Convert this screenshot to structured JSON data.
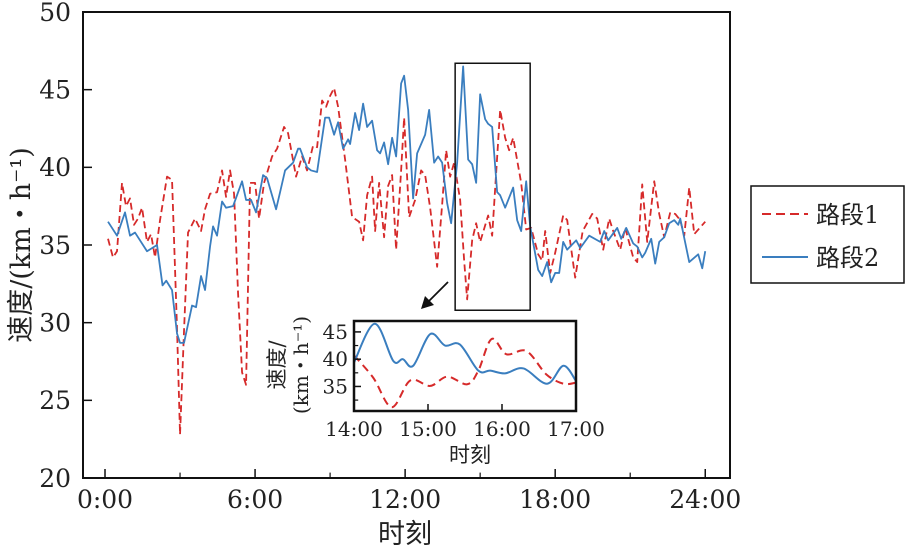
{
  "chart_data": [
    {
      "type": "line",
      "title": "",
      "xlabel": "时刻",
      "ylabel": "速度/(km・h⁻¹)",
      "xlim": [
        0,
        24
      ],
      "ylim": [
        20,
        50
      ],
      "xticks": [
        0,
        6,
        12,
        18,
        24
      ],
      "xtick_labels": [
        "0:00",
        "6:00",
        "12:00",
        "18:00",
        "24:00"
      ],
      "yticks": [
        20,
        25,
        30,
        35,
        40,
        45,
        50
      ],
      "ytick_labels": [
        "20",
        "25",
        "30",
        "35",
        "40",
        "45",
        "50"
      ],
      "legend": {
        "placement": "right-outside",
        "entries": [
          "路段1",
          "路段2"
        ]
      },
      "highlight_window": {
        "x": [
          14,
          17
        ],
        "y": [
          30.8,
          46.7
        ]
      },
      "series": [
        {
          "name": "路段1",
          "color": "#d62a2a",
          "style": "dashed",
          "x": [
            0.12,
            0.32,
            0.48,
            0.68,
            0.84,
            1.0,
            1.16,
            1.32,
            1.48,
            1.68,
            1.84,
            2.0,
            2.2,
            2.48,
            2.68,
            2.88,
            3.0,
            3.16,
            3.32,
            3.6,
            3.84,
            4.0,
            4.2,
            4.48,
            4.68,
            4.84,
            5.0,
            5.16,
            5.32,
            5.48,
            5.64,
            5.8,
            6.0,
            6.16,
            6.36,
            6.68,
            6.88,
            7.16,
            7.32,
            7.64,
            7.88,
            8.08,
            8.32,
            8.48,
            8.68,
            8.84,
            9.0,
            9.16,
            9.32,
            9.6,
            9.88,
            10.16,
            10.32,
            10.48,
            10.68,
            10.8,
            10.96,
            11.16,
            11.32,
            11.48,
            11.64,
            11.84,
            11.96,
            12.16,
            12.4,
            12.64,
            12.8,
            13.0,
            13.28,
            13.48,
            13.64,
            13.8,
            13.96,
            14.2,
            14.36,
            14.48,
            14.68,
            14.84,
            15.0,
            15.32,
            15.48,
            15.8,
            16.0,
            16.16,
            16.32,
            16.64,
            16.84,
            17.04,
            17.32,
            17.48,
            17.6,
            17.8,
            18.0,
            18.32,
            18.48,
            18.8,
            19.1,
            19.48,
            19.68,
            19.92,
            20.16,
            20.32,
            20.6,
            20.8,
            21.12,
            21.28,
            21.48,
            21.68,
            21.96,
            22.16,
            22.36,
            22.6,
            22.8,
            23.0,
            23.16,
            23.36,
            23.56,
            24.0
          ],
          "y": [
            35.4,
            34.2,
            34.6,
            39.0,
            37.5,
            38.0,
            36.3,
            36.7,
            37.4,
            35.2,
            35.7,
            34.2,
            36.6,
            39.4,
            39.2,
            29.6,
            22.8,
            29.5,
            35.8,
            36.7,
            35.9,
            37.3,
            38.3,
            38.4,
            39.8,
            38.1,
            39.8,
            38.3,
            31.9,
            26.8,
            26.0,
            39.0,
            39.0,
            36.7,
            39.0,
            40.7,
            41.2,
            42.6,
            42.2,
            39.4,
            40.7,
            39.8,
            41.4,
            41.3,
            44.3,
            43.9,
            44.6,
            45.1,
            43.9,
            40.5,
            36.8,
            36.5,
            35.3,
            38.2,
            39.4,
            35.9,
            39.0,
            35.5,
            38.8,
            39.5,
            34.7,
            39.8,
            43.2,
            36.8,
            37.9,
            39.8,
            39.5,
            37.4,
            33.6,
            37.6,
            41.1,
            39.4,
            40.3,
            37.9,
            34.0,
            31.5,
            35.3,
            36.4,
            35.2,
            36.9,
            35.6,
            43.7,
            41.9,
            41.1,
            41.9,
            39.0,
            36.0,
            36.1,
            34.4,
            34.0,
            35.9,
            33.2,
            34.5,
            36.9,
            36.6,
            32.9,
            35.9,
            37.0,
            36.7,
            34.7,
            36.7,
            35.9,
            34.7,
            36.1,
            34.2,
            33.9,
            38.9,
            35.2,
            39.1,
            37.0,
            35.5,
            37.1,
            37.0,
            36.6,
            35.6,
            38.7,
            35.7,
            36.5
          ]
        },
        {
          "name": "路段2",
          "color": "#3a7ebf",
          "style": "solid",
          "x": [
            0.12,
            0.48,
            0.8,
            1.0,
            1.2,
            1.68,
            2.08,
            2.3,
            2.45,
            2.68,
            2.88,
            3.0,
            3.16,
            3.48,
            3.64,
            3.84,
            4.0,
            4.2,
            4.32,
            4.48,
            4.68,
            4.84,
            5.12,
            5.48,
            5.64,
            5.84,
            6.04,
            6.32,
            6.48,
            6.84,
            7.0,
            7.2,
            7.52,
            7.72,
            7.8,
            8.08,
            8.24,
            8.48,
            8.8,
            8.96,
            9.16,
            9.32,
            9.52,
            9.72,
            9.8,
            10.0,
            10.16,
            10.32,
            10.48,
            10.68,
            10.88,
            11.0,
            11.16,
            11.32,
            11.48,
            11.64,
            11.84,
            11.96,
            12.12,
            12.32,
            12.48,
            12.8,
            12.96,
            13.16,
            13.32,
            13.48,
            13.68,
            13.84,
            14.08,
            14.32,
            14.52,
            14.68,
            14.84,
            15.0,
            15.2,
            15.32,
            15.48,
            15.68,
            15.8,
            16.0,
            16.32,
            16.48,
            16.64,
            16.84,
            17.0,
            17.32,
            17.48,
            17.68,
            17.84,
            18.0,
            18.16,
            18.32,
            18.48,
            18.84,
            19.0,
            19.36,
            19.8,
            19.96,
            20.12,
            20.48,
            20.64,
            20.84,
            21.12,
            21.28,
            21.48,
            21.6,
            21.84,
            22.0,
            22.16,
            22.36,
            22.56,
            22.76,
            22.92,
            23.0,
            23.36,
            23.72,
            23.88,
            24.0
          ],
          "y": [
            36.5,
            35.6,
            37.1,
            35.6,
            35.8,
            34.6,
            35.0,
            32.4,
            32.7,
            32.1,
            29.3,
            28.7,
            28.7,
            31.1,
            31.0,
            33.0,
            32.1,
            34.9,
            36.2,
            35.6,
            37.8,
            37.4,
            37.5,
            39.1,
            37.9,
            37.9,
            37.1,
            39.5,
            39.3,
            37.3,
            38.4,
            39.8,
            40.3,
            41.2,
            41.2,
            40.0,
            39.8,
            39.7,
            43.2,
            43.2,
            42.1,
            42.9,
            41.2,
            41.8,
            41.5,
            43.5,
            42.4,
            44.1,
            42.6,
            43.0,
            41.1,
            40.9,
            41.6,
            40.2,
            41.9,
            40.7,
            45.4,
            45.9,
            43.7,
            38.0,
            40.9,
            42.1,
            43.7,
            40.3,
            40.7,
            40.3,
            37.7,
            36.4,
            40.3,
            46.5,
            40.5,
            40.2,
            39.0,
            44.7,
            43.1,
            42.8,
            42.6,
            38.4,
            38.2,
            37.4,
            38.7,
            36.6,
            35.9,
            39.1,
            36.2,
            33.4,
            33.0,
            33.9,
            32.6,
            33.2,
            33.2,
            35.2,
            34.7,
            35.3,
            34.8,
            35.6,
            35.2,
            35.9,
            35.3,
            36.1,
            35.4,
            36.1,
            35.1,
            34.9,
            34.2,
            34.5,
            35.4,
            33.8,
            35.2,
            35.5,
            36.4,
            36.6,
            36.3,
            36.7,
            33.9,
            34.4,
            33.5,
            34.6
          ]
        }
      ]
    },
    {
      "type": "line",
      "title": "",
      "xlabel": "时刻",
      "ylabel_lines": [
        "速度/",
        "(km・h⁻¹)"
      ],
      "xlim": [
        14,
        17
      ],
      "ylim": [
        30.5,
        47
      ],
      "xticks": [
        14,
        15,
        16,
        17
      ],
      "xtick_labels": [
        "14:00",
        "15:00",
        "16:00",
        "17:00"
      ],
      "yticks": [
        35,
        40,
        45
      ],
      "ytick_labels": [
        "35",
        "40",
        "45"
      ],
      "series": [
        {
          "name": "路段1",
          "color": "#d62a2a",
          "style": "dashed",
          "x": [
            14.0,
            14.26,
            14.51,
            14.76,
            15.03,
            15.26,
            15.53,
            15.68,
            15.86,
            16.06,
            16.33,
            16.6,
            16.83,
            17.0
          ],
          "y": [
            40.7,
            36.6,
            31.2,
            36.1,
            35.1,
            36.8,
            35.4,
            37.9,
            43.7,
            40.9,
            41.5,
            37.2,
            35.5,
            35.7
          ]
        },
        {
          "name": "路段2",
          "color": "#3a7ebf",
          "style": "solid",
          "x": [
            14.0,
            14.28,
            14.53,
            14.66,
            14.8,
            15.03,
            15.23,
            15.43,
            15.68,
            15.84,
            16.04,
            16.29,
            16.61,
            16.83,
            17.0
          ],
          "y": [
            39.4,
            46.5,
            39.7,
            40.0,
            38.8,
            44.6,
            42.5,
            42.7,
            37.9,
            37.9,
            37.4,
            38.3,
            35.5,
            38.8,
            36.0
          ]
        }
      ]
    }
  ]
}
